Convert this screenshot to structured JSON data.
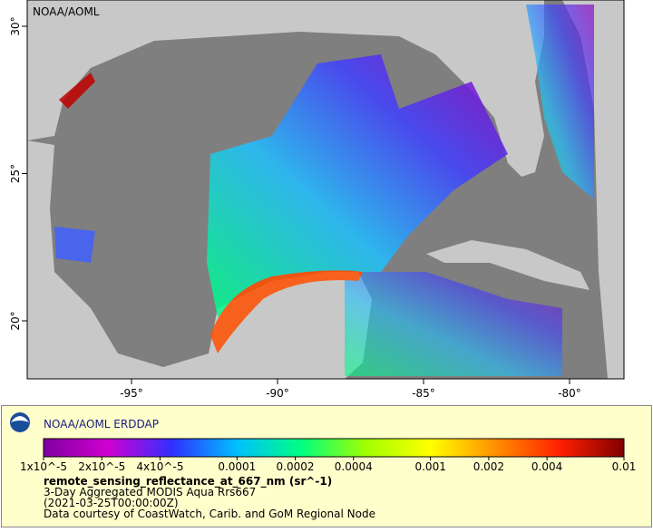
{
  "map": {
    "watermark": "NOAA/AOML",
    "lon_ticks": [
      {
        "value": -95,
        "label": "-95°"
      },
      {
        "value": -90,
        "label": "-90°"
      },
      {
        "value": -85,
        "label": "-85°"
      },
      {
        "value": -80,
        "label": "-80°"
      }
    ],
    "lat_ticks": [
      {
        "value": 30,
        "label": "30°"
      },
      {
        "value": 25,
        "label": "25°"
      },
      {
        "value": 20,
        "label": "20°"
      }
    ]
  },
  "legend": {
    "title": "NOAA/AOML ERDDAP",
    "colorbar": {
      "scale": "log",
      "lim": [
        1e-05,
        0.01
      ],
      "colors": [
        "#7f00a0",
        "#d000d0",
        "#3030ff",
        "#00c0ff",
        "#00ff80",
        "#a0ff00",
        "#ffff00",
        "#ff9000",
        "#ff2000",
        "#800000"
      ],
      "ticks": [
        {
          "value": 1e-05,
          "label": "1x10^-5"
        },
        {
          "value": 2e-05,
          "label": "2x10^-5"
        },
        {
          "value": 4e-05,
          "label": "4x10^-5"
        },
        0.0001,
        0.0002,
        0.0004,
        0.001,
        0.002,
        0.004,
        0.01
      ]
    },
    "variable": "remote_sensing_reflectance_at_667_nm (sr^-1)",
    "description": "3-Day Aggregated MODIS Aqua Rrs667",
    "time": "(2021-03-25T00:00:00Z)",
    "credit": "Data courtesy of CoastWatch, Carib. and GoM Regional Node"
  }
}
